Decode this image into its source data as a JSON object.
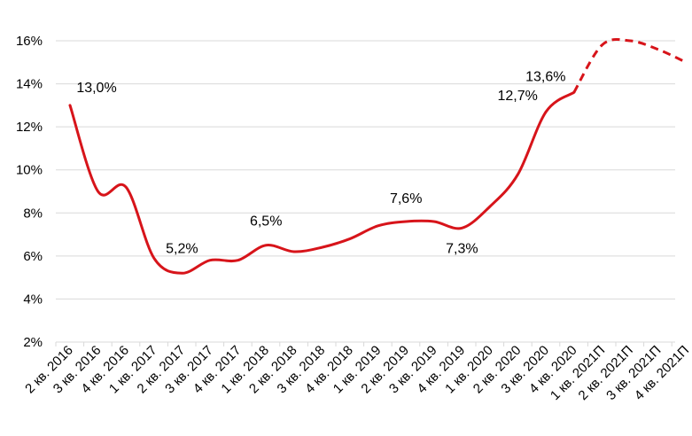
{
  "chart_data": {
    "type": "line",
    "categories": [
      "2 кв. 2016",
      "3 кв. 2016",
      "4 кв. 2016",
      "1 кв. 2017",
      "2 кв. 2017",
      "3 кв. 2017",
      "4 кв. 2017",
      "1 кв. 2018",
      "2 кв. 2018",
      "3 кв. 2018",
      "4 кв. 2018",
      "1 кв. 2019",
      "2 кв. 2019",
      "3 кв. 2019",
      "4 кв. 2019",
      "1 кв. 2020",
      "2 кв. 2020",
      "3 кв. 2020",
      "4 кв. 2020",
      "1 кв. 2021П",
      "2 кв. 2021П",
      "3 кв. 2021П",
      "4 кв. 2021П"
    ],
    "series": [
      {
        "values": [
          13.0,
          9.0,
          9.2,
          5.9,
          5.2,
          5.8,
          5.8,
          6.5,
          6.2,
          6.4,
          6.8,
          7.4,
          7.6,
          7.6,
          7.3,
          8.3,
          9.8,
          12.7,
          13.6,
          15.8,
          16.0,
          15.6,
          15.0
        ],
        "forecast_from_index": 18,
        "color": "#d7141a"
      }
    ],
    "data_labels": [
      {
        "index": 0,
        "text": "13,0%"
      },
      {
        "index": 4,
        "text": "5,2%"
      },
      {
        "index": 7,
        "text": "6,5%"
      },
      {
        "index": 12,
        "text": "7,6%"
      },
      {
        "index": 14,
        "text": "7,3%"
      },
      {
        "index": 17,
        "text": "12,7%"
      },
      {
        "index": 18,
        "text": "13,6%"
      }
    ],
    "yticks": [
      "2%",
      "4%",
      "6%",
      "8%",
      "10%",
      "12%",
      "14%",
      "16%"
    ],
    "ylim": [
      2,
      16
    ],
    "grid": true,
    "legend": "none"
  }
}
